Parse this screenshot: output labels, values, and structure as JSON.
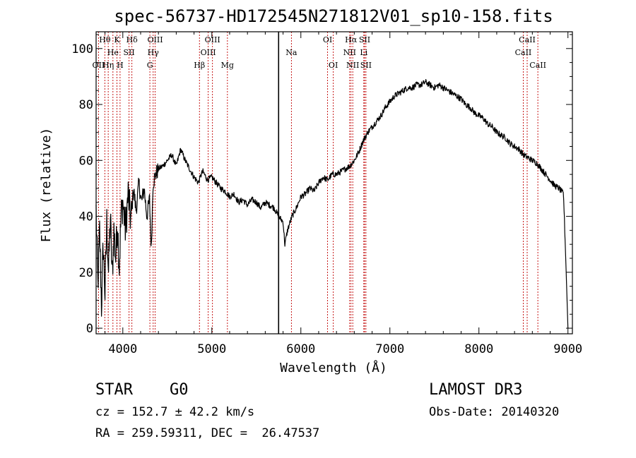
{
  "chart_data": {
    "type": "line",
    "title": "spec-56737-HD172545N271812V01_sp10-158.fits",
    "xlabel": "Wavelength (Å)",
    "ylabel": "Flux (relative)",
    "xlim": [
      3700,
      9050
    ],
    "ylim": [
      -2,
      106
    ],
    "x_ticks": [
      4000,
      5000,
      6000,
      7000,
      8000,
      9000
    ],
    "y_ticks": [
      0,
      20,
      40,
      60,
      80,
      100
    ],
    "grid": false,
    "series": [
      {
        "x": [
          3700,
          3720,
          3740,
          3760,
          3780,
          3800,
          3820,
          3840,
          3860,
          3880,
          3900,
          3920,
          3940,
          3960,
          3980,
          4000,
          4030,
          4060,
          4090,
          4120,
          4150,
          4180,
          4210,
          4240,
          4270,
          4300,
          4320,
          4340,
          4370,
          4400,
          4450,
          4500,
          4550,
          4600,
          4650,
          4700,
          4750,
          4800,
          4850,
          4880,
          4900,
          4950,
          5000,
          5050,
          5100,
          5150,
          5200,
          5250,
          5300,
          5350,
          5400,
          5450,
          5500,
          5550,
          5600,
          5650,
          5700,
          5750,
          5800,
          5820,
          5850,
          5900,
          5950,
          6000,
          6050,
          6100,
          6150,
          6200,
          6250,
          6300,
          6350,
          6400,
          6450,
          6500,
          6550,
          6600,
          6650,
          6700,
          6750,
          6800,
          6850,
          6900,
          6950,
          7000,
          7050,
          7100,
          7150,
          7200,
          7250,
          7300,
          7350,
          7400,
          7450,
          7500,
          7550,
          7600,
          7650,
          7700,
          7750,
          7800,
          7850,
          7900,
          7950,
          8000,
          8050,
          8100,
          8150,
          8200,
          8250,
          8300,
          8350,
          8400,
          8450,
          8500,
          8550,
          8600,
          8650,
          8700,
          8750,
          8800,
          8850,
          8900,
          8950,
          8980,
          9000
        ],
        "y": [
          42,
          15,
          35,
          8,
          30,
          12,
          38,
          20,
          40,
          18,
          35,
          25,
          38,
          22,
          40,
          45,
          35,
          48,
          38,
          50,
          42,
          52,
          45,
          50,
          40,
          46,
          28,
          52,
          55,
          57,
          58,
          60,
          62,
          58,
          64,
          60,
          57,
          54,
          52,
          55,
          56,
          53,
          54,
          52,
          50,
          49,
          47,
          48,
          45,
          46,
          44,
          46,
          45,
          43,
          45,
          44,
          43,
          40,
          38,
          30,
          35,
          40,
          43,
          47,
          48,
          50,
          49,
          52,
          54,
          53,
          55,
          55,
          56,
          57,
          58,
          60,
          63,
          67,
          70,
          72,
          74,
          76,
          79,
          81,
          83,
          84,
          85,
          86,
          86,
          87,
          87,
          88,
          87,
          86,
          87,
          86,
          85,
          84,
          83,
          82,
          80,
          79,
          77,
          76,
          75,
          73,
          72,
          70,
          69,
          68,
          66,
          65,
          64,
          62,
          61,
          60,
          59,
          57,
          55,
          53,
          51,
          50,
          48,
          20,
          0
        ]
      }
    ],
    "markers": [
      {
        "x": 5750,
        "style": "solid-black"
      }
    ],
    "lines": [
      {
        "name": "OII",
        "wavelength": 3727,
        "row": 2
      },
      {
        "name": "Hθ",
        "wavelength": 3798,
        "row": 0
      },
      {
        "name": "Hη",
        "wavelength": 3836,
        "row": 2
      },
      {
        "name": "He",
        "wavelength": 3889,
        "row": 1
      },
      {
        "name": "K",
        "wavelength": 3934,
        "row": 0
      },
      {
        "name": "H",
        "wavelength": 3969,
        "row": 2
      },
      {
        "name": "SII",
        "wavelength": 4070,
        "row": 1
      },
      {
        "name": "Hδ",
        "wavelength": 4102,
        "row": 0
      },
      {
        "name": "G",
        "wavelength": 4304,
        "row": 2
      },
      {
        "name": "Hγ",
        "wavelength": 4341,
        "row": 1
      },
      {
        "name": "OIII",
        "wavelength": 4363,
        "row": 0
      },
      {
        "name": "Hβ",
        "wavelength": 4861,
        "row": 2
      },
      {
        "name": "OIII",
        "wavelength": 4959,
        "row": 1
      },
      {
        "name": "OIII",
        "wavelength": 5007,
        "row": 0
      },
      {
        "name": "Mg",
        "wavelength": 5175,
        "row": 2
      },
      {
        "name": "Na",
        "wavelength": 5894,
        "row": 1
      },
      {
        "name": "OI",
        "wavelength": 6300,
        "row": 0
      },
      {
        "name": "OI",
        "wavelength": 6364,
        "row": 2
      },
      {
        "name": "NII",
        "wavelength": 6548,
        "row": 1
      },
      {
        "name": "Hα",
        "wavelength": 6563,
        "row": 0
      },
      {
        "name": "NII",
        "wavelength": 6583,
        "row": 2
      },
      {
        "name": "Li",
        "wavelength": 6707,
        "row": 1
      },
      {
        "name": "SII",
        "wavelength": 6716,
        "row": 0
      },
      {
        "name": "SII",
        "wavelength": 6731,
        "row": 2
      },
      {
        "name": "CaII",
        "wavelength": 8498,
        "row": 1
      },
      {
        "name": "CaII",
        "wavelength": 8542,
        "row": 0
      },
      {
        "name": "CaII",
        "wavelength": 8662,
        "row": 2
      }
    ]
  },
  "info": {
    "class_label": "STAR",
    "subclass": "G0",
    "survey": "LAMOST DR3",
    "cz": "cz = 152.7 ± 42.2 km/s",
    "obs_date": "Obs-Date: 20140320",
    "coords": "RA = 259.59311, DEC =  26.47537"
  }
}
